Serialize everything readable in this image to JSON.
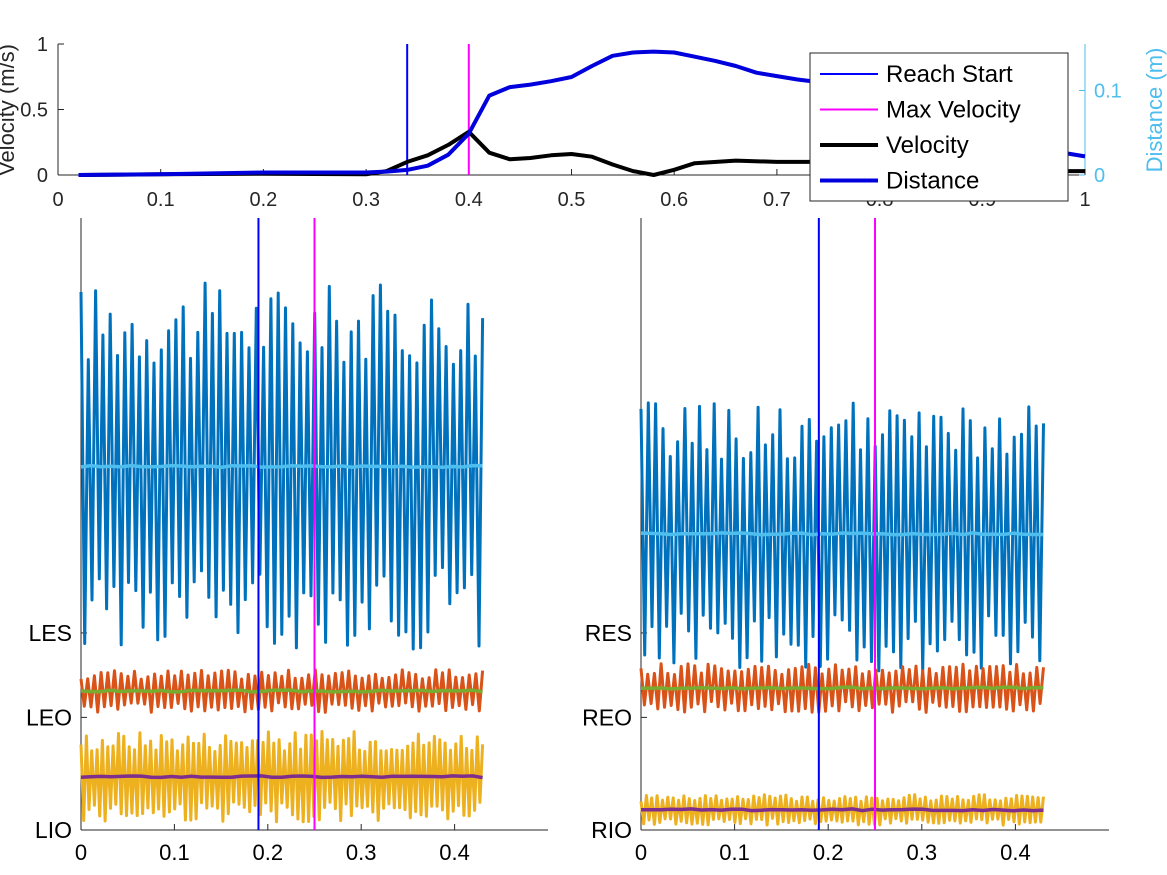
{
  "chart_data": [
    {
      "type": "line",
      "title": "",
      "xlabel": "",
      "ylabel": "Velocity (m/s)",
      "y2label": "Distance (m)",
      "xlim": [
        0,
        1
      ],
      "ylim": [
        0,
        1
      ],
      "y2lim": [
        0,
        0.155
      ],
      "x_ticks": [
        "0",
        "0.1",
        "0.2",
        "0.3",
        "0.4",
        "0.5",
        "0.6",
        "0.7",
        "0.8",
        "0.9",
        "1"
      ],
      "y_ticks": [
        "0",
        "0.5",
        "1"
      ],
      "y2_ticks": [
        "0",
        "0.1"
      ],
      "legend_position": "top-right",
      "legend": [
        {
          "label": "Reach Start",
          "color": "#0000ff",
          "style": "thin"
        },
        {
          "label": " Max Velocity",
          "color": "#ff00ff",
          "style": "thin"
        },
        {
          "label": "Velocity",
          "color": "#000000",
          "style": "thick"
        },
        {
          "label": "Distance",
          "color": "#0000dd",
          "style": "thick"
        }
      ],
      "vlines": [
        {
          "name": "Reach Start",
          "x": 0.34,
          "color": "#0000ff"
        },
        {
          "name": "Max Velocity",
          "x": 0.4,
          "color": "#ff00ff"
        }
      ],
      "series": [
        {
          "name": "Velocity",
          "axis": "left",
          "color": "#000000",
          "x": [
            0.02,
            0.1,
            0.2,
            0.3,
            0.32,
            0.34,
            0.36,
            0.38,
            0.4,
            0.42,
            0.44,
            0.46,
            0.48,
            0.5,
            0.52,
            0.54,
            0.56,
            0.58,
            0.6,
            0.62,
            0.66,
            0.7,
            0.74,
            0.8,
            0.9,
            0.96,
            1.0
          ],
          "y": [
            0,
            0.005,
            0.01,
            0.005,
            0.03,
            0.1,
            0.15,
            0.23,
            0.33,
            0.17,
            0.12,
            0.13,
            0.15,
            0.16,
            0.14,
            0.08,
            0.03,
            0.0,
            0.04,
            0.09,
            0.11,
            0.1,
            0.1,
            0.09,
            0.06,
            0.03,
            0.03
          ]
        },
        {
          "name": "Distance",
          "axis": "right",
          "color": "#0000dd",
          "x": [
            0.02,
            0.1,
            0.2,
            0.3,
            0.32,
            0.34,
            0.36,
            0.38,
            0.4,
            0.42,
            0.44,
            0.46,
            0.48,
            0.5,
            0.52,
            0.54,
            0.56,
            0.58,
            0.6,
            0.62,
            0.64,
            0.66,
            0.68,
            0.7,
            0.72,
            0.74,
            0.76,
            0.8,
            0.84,
            0.88,
            0.92,
            0.96,
            1.0
          ],
          "y": [
            0,
            0.001,
            0.003,
            0.003,
            0.004,
            0.006,
            0.011,
            0.024,
            0.049,
            0.094,
            0.104,
            0.107,
            0.111,
            0.116,
            0.129,
            0.141,
            0.145,
            0.146,
            0.145,
            0.14,
            0.135,
            0.129,
            0.121,
            0.117,
            0.113,
            0.11,
            0.107,
            0.102,
            0.091,
            0.068,
            0.049,
            0.03,
            0.022
          ]
        }
      ]
    },
    {
      "type": "line",
      "title": "",
      "xlim": [
        0,
        0.5
      ],
      "x_ticks": [
        "0",
        "0.1",
        "0.2",
        "0.3",
        "0.4"
      ],
      "y_tick_labels": [
        "LES",
        "LEO",
        "LIO"
      ],
      "vlines": [
        {
          "name": "Reach Start",
          "x": 0.19,
          "color": "#0000ff"
        },
        {
          "name": "Max Velocity",
          "x": 0.25,
          "color": "#ff00ff"
        }
      ],
      "series": [
        {
          "name": "LES raw",
          "color": "#0072bd",
          "x_range": [
            0,
            0.43
          ],
          "baseline": 0.594,
          "amplitude": 0.3,
          "cycles": 55,
          "trend": "flat"
        },
        {
          "name": "LES envelope",
          "color": "#4dbeee",
          "x_range": [
            0,
            0.43
          ],
          "value": 0.594
        },
        {
          "name": "LEO raw",
          "color": "#d95319",
          "x_range": [
            0,
            0.43
          ],
          "baseline": 0.227,
          "amplitude": 0.035,
          "cycles": 60
        },
        {
          "name": "LEO envelope",
          "color": "#77ac30",
          "x_range": [
            0,
            0.43
          ],
          "value": 0.227
        },
        {
          "name": "LIO raw",
          "color": "#edb120",
          "x_range": [
            0,
            0.43
          ],
          "baseline": 0.087,
          "amplitude": 0.075,
          "cycles": 75
        },
        {
          "name": "LIO envelope",
          "color": "#7e2f8e",
          "x_range": [
            0,
            0.43
          ],
          "value": 0.087
        }
      ]
    },
    {
      "type": "line",
      "title": "",
      "xlim": [
        0,
        0.5
      ],
      "x_ticks": [
        "0",
        "0.1",
        "0.2",
        "0.3",
        "0.4"
      ],
      "y_tick_labels": [
        "RES",
        "REO",
        "RIO"
      ],
      "vlines": [
        {
          "name": "Reach Start",
          "x": 0.19,
          "color": "#0000ff"
        },
        {
          "name": "Max Velocity",
          "x": 0.25,
          "color": "#ff00ff"
        }
      ],
      "series": [
        {
          "name": "RES raw",
          "color": "#0072bd",
          "x_range": [
            0,
            0.43
          ],
          "baseline": 0.484,
          "amplitude": 0.22,
          "cycles": 55,
          "trend": "slight-decrease"
        },
        {
          "name": "RES envelope",
          "color": "#4dbeee",
          "x_range": [
            0,
            0.43
          ],
          "value": 0.484
        },
        {
          "name": "REO raw",
          "color": "#d95319",
          "x_range": [
            0,
            0.43
          ],
          "baseline": 0.232,
          "amplitude": 0.04,
          "cycles": 60
        },
        {
          "name": "REO envelope",
          "color": "#77ac30",
          "x_range": [
            0,
            0.43
          ],
          "value": 0.232
        },
        {
          "name": "RIO raw",
          "color": "#edb120",
          "x_range": [
            0,
            0.43
          ],
          "baseline": 0.033,
          "amplitude": 0.025,
          "cycles": 75
        },
        {
          "name": "RIO envelope",
          "color": "#7e2f8e",
          "x_range": [
            0,
            0.43
          ],
          "value": 0.033
        }
      ]
    }
  ],
  "colors": {
    "distance_axis": "#4dbeee",
    "axis": "#262626"
  }
}
